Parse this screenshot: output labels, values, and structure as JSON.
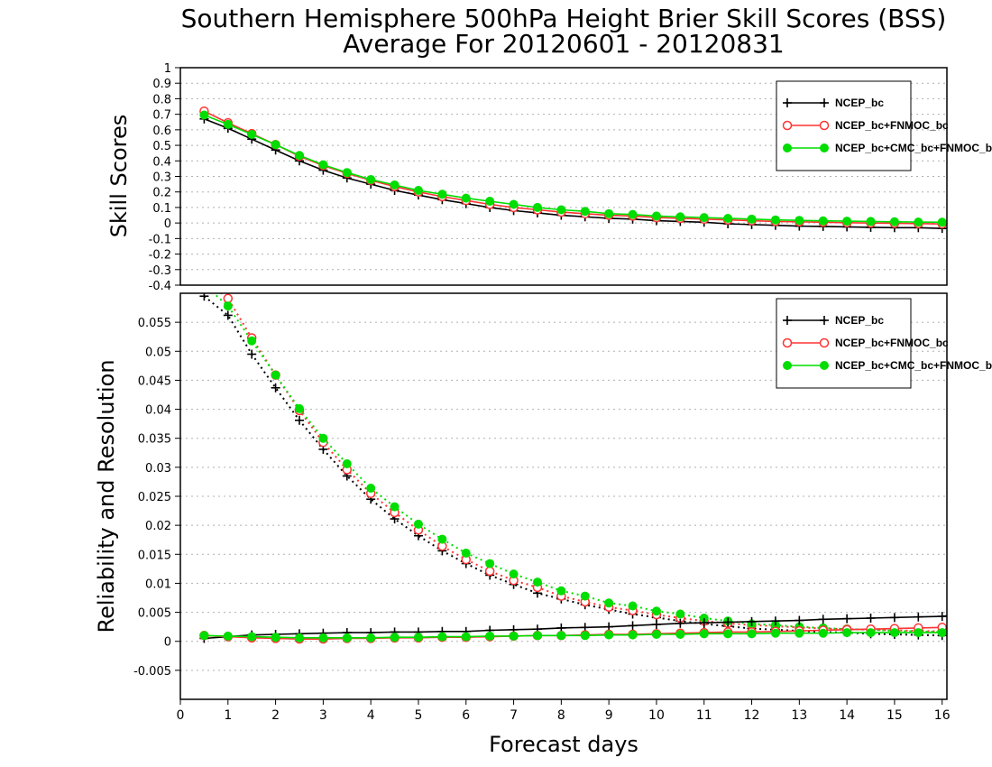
{
  "chart_data": [
    {
      "type": "line",
      "title": "Southern Hemisphere 500hPa Height Brier Skill Scores (BSS)",
      "subtitle": "Average For 20120601 - 20120831",
      "ylabel": "Skill Scores",
      "ylim": [
        -0.4,
        1
      ],
      "yticks": [
        "1",
        "0.9",
        "0.8",
        "0.7",
        "0.6",
        "0.5",
        "0.4",
        "0.3",
        "0.2",
        "0.1",
        "0",
        "-0.1",
        "-0.2",
        "-0.3",
        "-0.4"
      ],
      "ytick_values": [
        1,
        0.9,
        0.8,
        0.7,
        0.6,
        0.5,
        0.4,
        0.3,
        0.2,
        0.1,
        0,
        -0.1,
        -0.2,
        -0.3,
        -0.4
      ],
      "xlim": [
        0,
        16.1
      ],
      "grid": true,
      "legend_position": "top-right",
      "x": [
        0.5,
        1,
        1.5,
        2,
        2.5,
        3,
        3.5,
        4,
        4.5,
        5,
        5.5,
        6,
        6.5,
        7,
        7.5,
        8,
        8.5,
        9,
        9.5,
        10,
        10.5,
        11,
        11.5,
        12,
        12.5,
        13,
        13.5,
        14,
        14.5,
        15,
        15.5,
        16,
        16.1
      ],
      "series": [
        {
          "name": "NCEP_bc",
          "color": "#000000",
          "marker": "plus",
          "values": [
            0.67,
            0.61,
            0.54,
            0.47,
            0.4,
            0.34,
            0.29,
            0.25,
            0.21,
            0.18,
            0.15,
            0.125,
            0.1,
            0.08,
            0.065,
            0.05,
            0.04,
            0.03,
            0.025,
            0.015,
            0.01,
            0.005,
            -0.005,
            -0.01,
            -0.015,
            -0.02,
            -0.022,
            -0.025,
            -0.028,
            -0.03,
            -0.03,
            -0.035,
            -0.035
          ]
        },
        {
          "name": "NCEP_bc+FNMOC_bc",
          "color": "#ff3333",
          "marker": "open-circle",
          "values": [
            0.72,
            0.645,
            0.575,
            0.505,
            0.43,
            0.37,
            0.32,
            0.275,
            0.235,
            0.2,
            0.17,
            0.145,
            0.12,
            0.1,
            0.085,
            0.07,
            0.06,
            0.05,
            0.045,
            0.035,
            0.03,
            0.025,
            0.02,
            0.015,
            0.01,
            0.008,
            0.005,
            0.002,
            0.0,
            -0.002,
            -0.004,
            -0.006,
            -0.006
          ]
        },
        {
          "name": "NCEP_bc+CMC_bc+FNMOC_bc",
          "color": "#00dd00",
          "marker": "filled-circle",
          "values": [
            0.695,
            0.635,
            0.57,
            0.505,
            0.435,
            0.375,
            0.325,
            0.28,
            0.245,
            0.21,
            0.185,
            0.16,
            0.14,
            0.12,
            0.1,
            0.085,
            0.075,
            0.06,
            0.055,
            0.045,
            0.04,
            0.035,
            0.03,
            0.025,
            0.02,
            0.017,
            0.014,
            0.012,
            0.01,
            0.008,
            0.006,
            0.005,
            0.005
          ]
        }
      ]
    },
    {
      "type": "line",
      "ylabel": "Reliability and Resolution",
      "xlabel": "Forecast days",
      "ylim": [
        -0.01,
        0.06
      ],
      "yticks": [
        "0.055",
        "0.05",
        "0.045",
        "0.04",
        "0.035",
        "0.03",
        "0.025",
        "0.02",
        "0.015",
        "0.01",
        "0.005",
        "0",
        "-0.005"
      ],
      "ytick_values": [
        0.055,
        0.05,
        0.045,
        0.04,
        0.035,
        0.03,
        0.025,
        0.02,
        0.015,
        0.01,
        0.005,
        0,
        -0.005
      ],
      "xlim": [
        0,
        16.1
      ],
      "xticks": [
        "0",
        "1",
        "2",
        "3",
        "4",
        "5",
        "6",
        "7",
        "8",
        "9",
        "10",
        "11",
        "12",
        "13",
        "14",
        "15",
        "16"
      ],
      "xtick_values": [
        0,
        1,
        2,
        3,
        4,
        5,
        6,
        7,
        8,
        9,
        10,
        11,
        12,
        13,
        14,
        15,
        16
      ],
      "grid": true,
      "legend_position": "top-right",
      "x": [
        0.5,
        1,
        1.5,
        2,
        2.5,
        3,
        3.5,
        4,
        4.5,
        5,
        5.5,
        6,
        6.5,
        7,
        7.5,
        8,
        8.5,
        9,
        9.5,
        10,
        10.5,
        11,
        11.5,
        12,
        12.5,
        13,
        13.5,
        14,
        14.5,
        15,
        15.5,
        16,
        16.1
      ],
      "series": [
        {
          "name": "NCEP_bc",
          "color": "#000000",
          "marker": "plus",
          "line": "dotted",
          "role": "resolution",
          "values": [
            0.0595,
            0.0562,
            0.0495,
            0.0437,
            0.0381,
            0.0331,
            0.0285,
            0.0245,
            0.0211,
            0.0182,
            0.0156,
            0.0134,
            0.0114,
            0.0098,
            0.0083,
            0.0073,
            0.0063,
            0.0055,
            0.0047,
            0.0041,
            0.0035,
            0.003,
            0.0026,
            0.0022,
            0.002,
            0.0018,
            0.0016,
            0.0015,
            0.0013,
            0.0012,
            0.0011,
            0.001,
            0.001
          ]
        },
        {
          "name": "NCEP_bc+FNMOC_bc",
          "color": "#ff3333",
          "marker": "open-circle",
          "line": "dotted",
          "role": "resolution",
          "values": [
            0.0625,
            0.0591,
            0.0523,
            0.0459,
            0.0398,
            0.0343,
            0.0296,
            0.0255,
            0.0222,
            0.0192,
            0.0164,
            0.0141,
            0.0121,
            0.0105,
            0.0093,
            0.0078,
            0.0068,
            0.0059,
            0.0053,
            0.0046,
            0.004,
            0.0035,
            0.0031,
            0.0028,
            0.0026,
            0.0024,
            0.0022,
            0.0021,
            0.002,
            0.0019,
            0.0018,
            0.0017,
            0.0017
          ]
        },
        {
          "name": "NCEP_bc+CMC_bc+FNMOC_bc",
          "color": "#00dd00",
          "marker": "filled-circle",
          "line": "dotted",
          "role": "resolution",
          "values": [
            0.0615,
            0.0578,
            0.0518,
            0.0459,
            0.0401,
            0.035,
            0.0306,
            0.0264,
            0.0232,
            0.0202,
            0.0176,
            0.0152,
            0.0134,
            0.0116,
            0.0102,
            0.0087,
            0.0078,
            0.0066,
            0.0061,
            0.0052,
            0.0047,
            0.004,
            0.0035,
            0.003,
            0.0028,
            0.0025,
            0.0023,
            0.0021,
            0.002,
            0.0018,
            0.0017,
            0.0016,
            0.0015
          ]
        },
        {
          "name": "NCEP_bc",
          "color": "#000000",
          "marker": "plus",
          "line": "solid",
          "role": "reliability",
          "values": [
            0.0005,
            0.0008,
            0.0011,
            0.0012,
            0.0013,
            0.0014,
            0.0015,
            0.0015,
            0.0016,
            0.0016,
            0.0017,
            0.0017,
            0.0019,
            0.002,
            0.0021,
            0.0023,
            0.0024,
            0.0025,
            0.0027,
            0.0029,
            0.0031,
            0.0032,
            0.0033,
            0.0034,
            0.0035,
            0.0036,
            0.0038,
            0.0039,
            0.004,
            0.0041,
            0.0042,
            0.0043,
            0.0044
          ]
        },
        {
          "name": "NCEP_bc+FNMOC_bc",
          "color": "#ff3333",
          "marker": "open-circle",
          "line": "solid",
          "role": "reliability",
          "values": [
            0.001,
            0.0008,
            0.0006,
            0.0005,
            0.0004,
            0.0004,
            0.0005,
            0.0005,
            0.0006,
            0.0006,
            0.0007,
            0.0007,
            0.0008,
            0.0009,
            0.001,
            0.001,
            0.0011,
            0.0012,
            0.0012,
            0.0013,
            0.0014,
            0.0015,
            0.0016,
            0.0016,
            0.0017,
            0.0018,
            0.0019,
            0.002,
            0.0021,
            0.0022,
            0.0023,
            0.0024,
            0.0025
          ]
        },
        {
          "name": "NCEP_bc+CMC_bc+FNMOC_bc",
          "color": "#00dd00",
          "marker": "filled-circle",
          "line": "solid",
          "role": "reliability",
          "values": [
            0.001,
            0.0009,
            0.0008,
            0.0007,
            0.0006,
            0.0006,
            0.0006,
            0.0006,
            0.0007,
            0.0007,
            0.0008,
            0.0008,
            0.0009,
            0.0009,
            0.001,
            0.001,
            0.001,
            0.0011,
            0.0011,
            0.0012,
            0.0012,
            0.0013,
            0.0013,
            0.0013,
            0.0014,
            0.0014,
            0.0014,
            0.0015,
            0.0015,
            0.0015,
            0.0015,
            0.0015,
            0.0015
          ]
        }
      ]
    }
  ]
}
